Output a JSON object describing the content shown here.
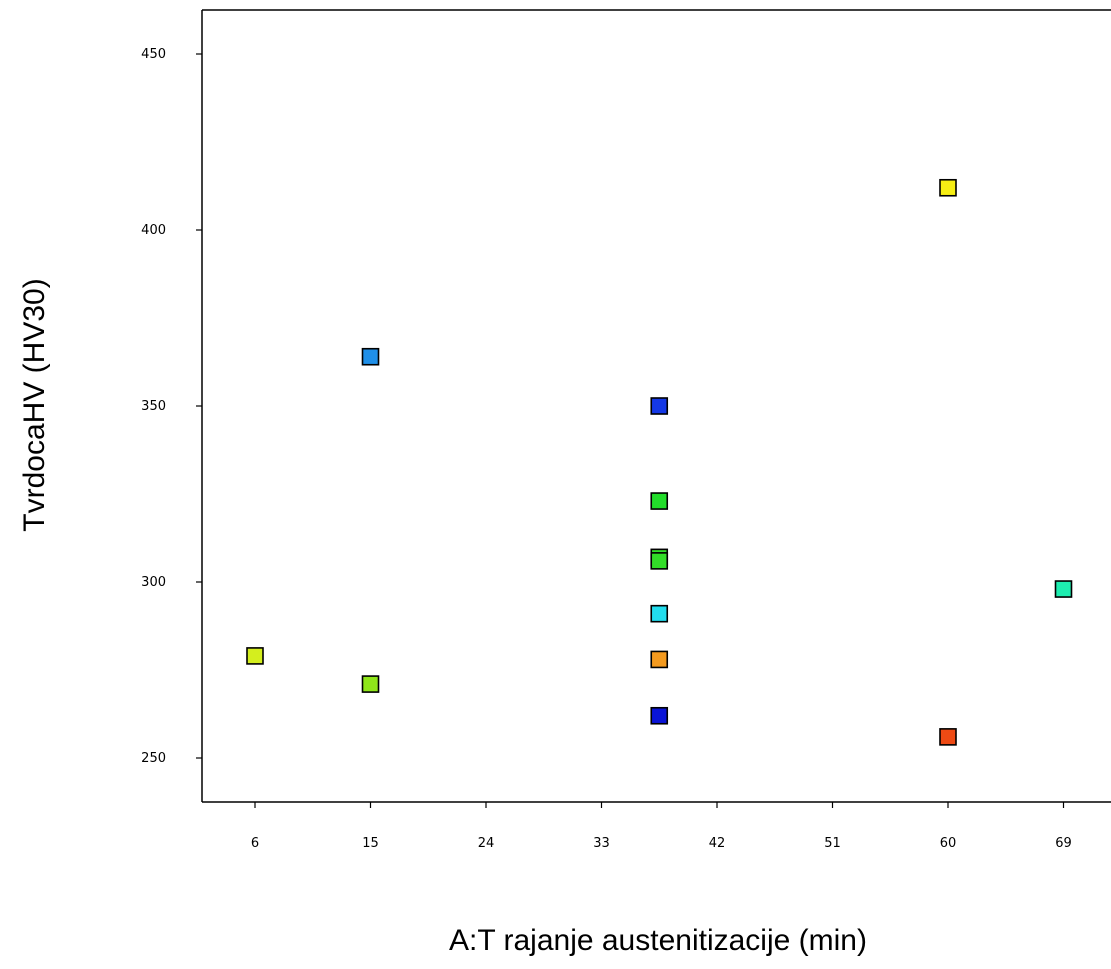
{
  "chart_data": {
    "type": "scatter",
    "title": "",
    "xlabel": "A:T rajanje austenitizacije (min)",
    "ylabel": "TvrdocaHV (HV30)",
    "xlim": [
      1.5,
      73.5
    ],
    "ylim": [
      237.5,
      462.5
    ],
    "x_ticks": [
      6,
      15,
      24,
      33,
      42,
      51,
      60,
      69
    ],
    "y_ticks": [
      250,
      300,
      350,
      400,
      450
    ],
    "grid": false,
    "legend": "none",
    "points": [
      {
        "x": 6,
        "y": 279,
        "color": "#d4ee1e"
      },
      {
        "x": 15,
        "y": 364,
        "color": "#1f8fe8"
      },
      {
        "x": 15,
        "y": 271,
        "color": "#8fe61a"
      },
      {
        "x": 37.5,
        "y": 350,
        "color": "#1438e6"
      },
      {
        "x": 37.5,
        "y": 323,
        "color": "#22dd2a"
      },
      {
        "x": 37.5,
        "y": 307,
        "color": "#32dd28"
      },
      {
        "x": 37.5,
        "y": 306,
        "color": "#32dd28"
      },
      {
        "x": 37.5,
        "y": 291,
        "color": "#22ddee"
      },
      {
        "x": 37.5,
        "y": 278,
        "color": "#f49a1e"
      },
      {
        "x": 37.5,
        "y": 262,
        "color": "#0a14d6"
      },
      {
        "x": 60,
        "y": 412,
        "color": "#f6ee14"
      },
      {
        "x": 60,
        "y": 256,
        "color": "#ee4a14"
      },
      {
        "x": 69,
        "y": 298,
        "color": "#1eeeb0"
      }
    ]
  }
}
